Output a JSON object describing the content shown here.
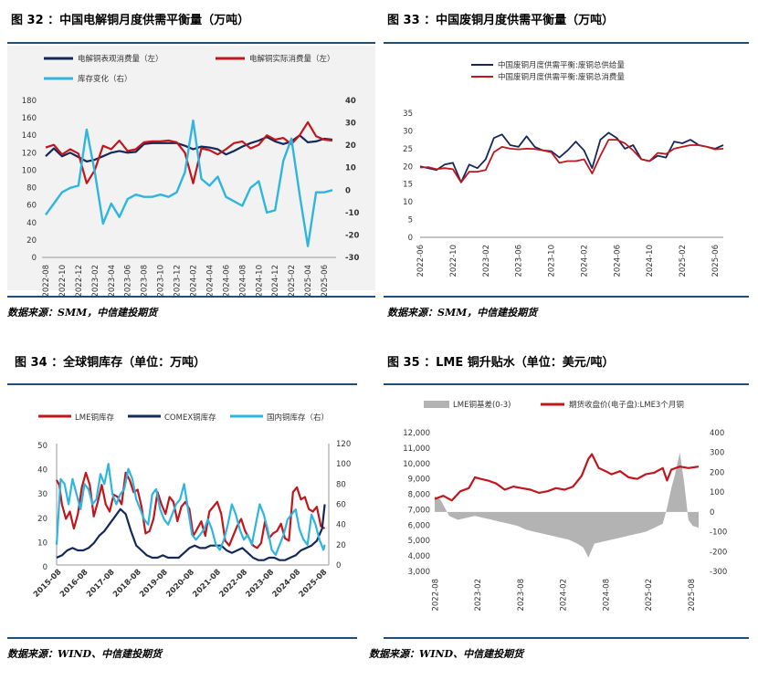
{
  "figures": [
    {
      "title": "图 32 ：中国电解铜月度供需平衡量（万吨）",
      "source": "数据来源：SMM，中信建投期货"
    },
    {
      "title": "图 33 ：中国废铜月度供需平衡量（万吨）",
      "source": "数据来源：SMM，中信建投期货"
    },
    {
      "title": "图 34 ：全球铜库存（单位：万吨）",
      "source": "数据来源：WIND、中信建投期货"
    },
    {
      "title": "图 35 ：LME 铜升贴水（单位：美元/吨）",
      "source": "数据来源：WIND、中信建投期货"
    }
  ],
  "colors": {
    "navy": "#14285a",
    "red": "#c0161c",
    "cyan": "#2eb5e0",
    "gray": "#b3b3b3",
    "rule": "#1f4e79"
  },
  "chart_data": [
    {
      "type": "line",
      "title": "中国电解铜月度供需平衡量（万吨）",
      "x": [
        "2022-08",
        "2022-09",
        "2022-10",
        "2022-11",
        "2022-12",
        "2023-01",
        "2023-02",
        "2023-03",
        "2023-04",
        "2023-05",
        "2023-06",
        "2023-07",
        "2023-08",
        "2023-09",
        "2023-10",
        "2023-11",
        "2023-12",
        "2024-01",
        "2024-02",
        "2024-03",
        "2024-04",
        "2024-05",
        "2024-06",
        "2024-07",
        "2024-08",
        "2024-09",
        "2024-10",
        "2024-11",
        "2024-12",
        "2025-01",
        "2025-02",
        "2025-03",
        "2025-04",
        "2025-05",
        "2025-06",
        "2025-07"
      ],
      "x_tick_labels": [
        "2022-08",
        "2022-10",
        "2022-12",
        "2023-02",
        "2023-04",
        "2023-06",
        "2023-08",
        "2023-10",
        "2023-12",
        "2024-02",
        "2024-04",
        "2024-06",
        "2024-08",
        "2024-10",
        "2024-12",
        "2025-02",
        "2025-04",
        "2025-06"
      ],
      "ylim_left": [
        0,
        180
      ],
      "yticks_left": [
        "0",
        "20",
        "40",
        "60",
        "80",
        "100",
        "120",
        "140",
        "160",
        "180"
      ],
      "ylim_right": [
        -30,
        40
      ],
      "yticks_right": [
        "-30",
        "-20",
        "-10",
        "0",
        "10",
        "20",
        "30",
        "40"
      ],
      "legend_position": "top",
      "series": [
        {
          "name": "电解铜表观消费量（左）",
          "axis": "left",
          "color": "#14285a",
          "values": [
            116,
            125,
            116,
            120,
            115,
            110,
            112,
            116,
            120,
            122,
            120,
            121,
            130,
            131,
            131,
            131,
            131,
            128,
            124,
            127,
            126,
            124,
            118,
            122,
            127,
            131,
            134,
            138,
            133,
            130,
            133,
            140,
            132,
            133,
            136,
            135
          ]
        },
        {
          "name": "电解铜实际消费量（左）",
          "axis": "left",
          "color": "#c0161c",
          "values": [
            126,
            129,
            118,
            124,
            119,
            85,
            100,
            128,
            124,
            134,
            122,
            124,
            132,
            133,
            133,
            134,
            132,
            120,
            85,
            125,
            123,
            118,
            124,
            131,
            133,
            125,
            129,
            140,
            135,
            137,
            130,
            140,
            155,
            139,
            135,
            134
          ]
        },
        {
          "name": "库存变化（右）",
          "axis": "right",
          "color": "#2eb5e0",
          "values": [
            -11,
            -6,
            -1,
            1,
            2,
            27,
            8,
            -15,
            -6,
            -12,
            -4,
            -2,
            -3,
            -3,
            -2,
            -3,
            -1,
            8,
            31,
            5,
            2,
            6,
            -3,
            -5,
            -7,
            1,
            4,
            -10,
            -9,
            13,
            23,
            -2,
            -25,
            -1,
            -1,
            0
          ]
        }
      ]
    },
    {
      "type": "line",
      "title": "中国废铜月度供需平衡量（万吨）",
      "x": [
        "2022-06",
        "2022-07",
        "2022-08",
        "2022-09",
        "2022-10",
        "2022-11",
        "2022-12",
        "2023-01",
        "2023-02",
        "2023-03",
        "2023-04",
        "2023-05",
        "2023-06",
        "2023-07",
        "2023-08",
        "2023-09",
        "2023-10",
        "2023-11",
        "2023-12",
        "2024-01",
        "2024-02",
        "2024-03",
        "2024-04",
        "2024-05",
        "2024-06",
        "2024-07",
        "2024-08",
        "2024-09",
        "2024-10",
        "2024-11",
        "2024-12",
        "2025-01",
        "2025-02",
        "2025-03",
        "2025-04",
        "2025-05",
        "2025-06",
        "2025-07"
      ],
      "x_tick_labels": [
        "2022-06",
        "2022-10",
        "2023-02",
        "2023-06",
        "2023-10",
        "2024-02",
        "2024-06",
        "2024-10",
        "2025-02",
        "2025-06"
      ],
      "ylim": [
        0,
        35
      ],
      "yticks": [
        "0",
        "5",
        "10",
        "15",
        "20",
        "25",
        "30",
        "35"
      ],
      "legend_position": "top",
      "series": [
        {
          "name": "中国废铜月度供需平衡:废铜总供给量",
          "color": "#14285a",
          "values": [
            20,
            19.5,
            19,
            20.5,
            21,
            15.5,
            20.5,
            19.5,
            22,
            28,
            29,
            26,
            25.5,
            28.5,
            25.5,
            24.5,
            24.3,
            22.5,
            24.5,
            27,
            24.5,
            19.5,
            27.5,
            29.5,
            28,
            25,
            26,
            22,
            21.5,
            23,
            22.5,
            27,
            26.5,
            27.5,
            26,
            25.5,
            25,
            26
          ]
        },
        {
          "name": "中国废铜月度供需平衡:废铜总消费量",
          "color": "#c0161c",
          "values": [
            19.7,
            19.8,
            19.2,
            19.5,
            19.2,
            15.5,
            18.5,
            18.5,
            19,
            24,
            25.5,
            25,
            24.8,
            25,
            24.9,
            24.5,
            24,
            21,
            21.5,
            21.5,
            22,
            18,
            23,
            27.5,
            27.5,
            26.5,
            24.5,
            22,
            21.5,
            23.8,
            23.5,
            25,
            25.5,
            26,
            26,
            25.5,
            24.8,
            25
          ]
        }
      ]
    },
    {
      "type": "line",
      "title": "全球铜库存（单位：万吨）",
      "x_tick_labels": [
        "2015-08",
        "2016-08",
        "2017-08",
        "2018-08",
        "2019-08",
        "2020-08",
        "2021-08",
        "2022-08",
        "2023-08",
        "2024-08",
        "2025-08"
      ],
      "x_range": [
        2015.5,
        2025.75
      ],
      "ylim_left": [
        0,
        50
      ],
      "yticks_left": [
        "0",
        "10",
        "20",
        "30",
        "40",
        "50"
      ],
      "ylim_right": [
        0,
        120
      ],
      "yticks_right": [
        "0",
        "20",
        "40",
        "60",
        "80",
        "100",
        "120"
      ],
      "legend_position": "top",
      "series": [
        {
          "name": "LME铜库存",
          "axis": "left",
          "color": "#c0161c",
          "x": [
            2015.5,
            2015.6,
            2015.7,
            2015.85,
            2016.0,
            2016.15,
            2016.3,
            2016.45,
            2016.6,
            2016.75,
            2016.9,
            2017.05,
            2017.2,
            2017.35,
            2017.5,
            2017.65,
            2017.8,
            2017.95,
            2018.1,
            2018.25,
            2018.4,
            2018.55,
            2018.7,
            2018.85,
            2019.0,
            2019.15,
            2019.3,
            2019.45,
            2019.6,
            2019.75,
            2019.9,
            2020.05,
            2020.2,
            2020.35,
            2020.5,
            2020.65,
            2020.8,
            2020.95,
            2021.1,
            2021.25,
            2021.4,
            2021.55,
            2021.7,
            2021.85,
            2022.0,
            2022.15,
            2022.3,
            2022.45,
            2022.6,
            2022.75,
            2022.9,
            2023.05,
            2023.2,
            2023.35,
            2023.5,
            2023.65,
            2023.8,
            2023.95,
            2024.1,
            2024.25,
            2024.4,
            2024.55,
            2024.7,
            2024.85,
            2025.0,
            2025.15,
            2025.3,
            2025.45,
            2025.6
          ],
          "values": [
            35,
            33,
            25,
            19,
            22,
            15,
            21,
            32,
            38,
            33,
            20,
            26,
            33,
            25,
            22,
            29,
            28,
            25,
            38,
            35,
            30,
            31,
            24,
            13,
            14,
            19,
            30,
            25,
            21,
            28,
            26,
            18,
            24,
            26,
            23,
            12,
            15,
            18,
            12,
            22,
            24,
            26,
            21,
            10,
            8,
            12,
            16,
            19,
            14,
            11,
            8,
            7,
            9,
            18,
            11,
            13,
            14,
            17,
            11,
            10,
            30,
            32,
            27,
            28,
            23,
            22,
            24,
            16,
            15
          ]
        },
        {
          "name": "COMEX铜库存",
          "axis": "left",
          "color": "#14285a",
          "x": [
            2015.5,
            2015.7,
            2015.9,
            2016.1,
            2016.3,
            2016.5,
            2016.7,
            2016.9,
            2017.1,
            2017.3,
            2017.5,
            2017.7,
            2017.9,
            2018.1,
            2018.3,
            2018.5,
            2018.7,
            2018.9,
            2019.1,
            2019.3,
            2019.5,
            2019.7,
            2019.9,
            2020.1,
            2020.3,
            2020.5,
            2020.7,
            2020.9,
            2021.1,
            2021.3,
            2021.5,
            2021.7,
            2021.9,
            2022.1,
            2022.3,
            2022.5,
            2022.7,
            2022.9,
            2023.1,
            2023.3,
            2023.5,
            2023.7,
            2023.9,
            2024.1,
            2024.3,
            2024.5,
            2024.7,
            2024.9,
            2025.1,
            2025.3,
            2025.5,
            2025.6
          ],
          "values": [
            3,
            4,
            6,
            7,
            6,
            6,
            7,
            9,
            12,
            14,
            17,
            20,
            23,
            21,
            14,
            8,
            6,
            4,
            3,
            3,
            4,
            3,
            3,
            3,
            5,
            7,
            8,
            7,
            7,
            8,
            8,
            8,
            6,
            5,
            6,
            7,
            5,
            3,
            2,
            2,
            3,
            3,
            2,
            2,
            3,
            4,
            6,
            7,
            8,
            10,
            15,
            25
          ]
        },
        {
          "name": "国内铜库存（右）",
          "axis": "right",
          "color": "#2eb5e0",
          "x": [
            2015.5,
            2015.65,
            2015.8,
            2015.95,
            2016.1,
            2016.25,
            2016.4,
            2016.55,
            2016.7,
            2016.85,
            2017.0,
            2017.15,
            2017.3,
            2017.45,
            2017.6,
            2017.75,
            2017.9,
            2018.05,
            2018.2,
            2018.35,
            2018.5,
            2018.65,
            2018.8,
            2018.95,
            2019.1,
            2019.25,
            2019.4,
            2019.55,
            2019.7,
            2019.85,
            2020.0,
            2020.15,
            2020.3,
            2020.45,
            2020.6,
            2020.75,
            2020.9,
            2021.05,
            2021.2,
            2021.35,
            2021.5,
            2021.65,
            2021.8,
            2021.95,
            2022.1,
            2022.25,
            2022.4,
            2022.55,
            2022.7,
            2022.85,
            2023.0,
            2023.15,
            2023.3,
            2023.45,
            2023.6,
            2023.75,
            2023.9,
            2024.05,
            2024.2,
            2024.35,
            2024.5,
            2024.65,
            2024.8,
            2024.95,
            2025.1,
            2025.25,
            2025.4,
            2025.55,
            2025.6
          ],
          "values": [
            20,
            85,
            80,
            60,
            85,
            70,
            55,
            80,
            75,
            60,
            65,
            90,
            80,
            100,
            70,
            60,
            70,
            75,
            95,
            85,
            65,
            55,
            45,
            40,
            70,
            75,
            55,
            45,
            40,
            50,
            60,
            65,
            80,
            55,
            30,
            25,
            30,
            35,
            45,
            35,
            20,
            15,
            25,
            40,
            60,
            50,
            35,
            25,
            30,
            20,
            40,
            60,
            50,
            35,
            15,
            10,
            20,
            30,
            45,
            50,
            55,
            35,
            25,
            20,
            50,
            40,
            25,
            15,
            20
          ]
        }
      ]
    },
    {
      "type": "area",
      "title": "LME 铜升贴水（单位：美元/吨）",
      "x_tick_labels": [
        "2022-08",
        "2023-02",
        "2023-08",
        "2024-02",
        "2024-08",
        "2025-02",
        "2025-08"
      ],
      "x_range": [
        2022.58,
        2025.67
      ],
      "ylim_left": [
        3000,
        12000
      ],
      "yticks_left": [
        "3,000",
        "4,000",
        "5,000",
        "6,000",
        "7,000",
        "8,000",
        "9,000",
        "10,000",
        "11,000",
        "12,000"
      ],
      "ylim_right": [
        -300,
        400
      ],
      "yticks_right": [
        "-300",
        "-200",
        "-100",
        "0",
        "100",
        "200",
        "300",
        "400"
      ],
      "legend_position": "top",
      "series": [
        {
          "name": "LME铜基差(0-3)",
          "axis": "right",
          "type": "area",
          "color": "#b3b3b3",
          "x": [
            2022.58,
            2022.65,
            2022.75,
            2022.85,
            2022.95,
            2023.05,
            2023.15,
            2023.25,
            2023.35,
            2023.45,
            2023.55,
            2023.65,
            2023.75,
            2023.85,
            2023.95,
            2024.05,
            2024.15,
            2024.25,
            2024.32,
            2024.38,
            2024.45,
            2024.55,
            2024.65,
            2024.75,
            2024.85,
            2024.95,
            2025.05,
            2025.15,
            2025.25,
            2025.3,
            2025.35,
            2025.4,
            2025.45,
            2025.5,
            2025.55,
            2025.6,
            2025.67
          ],
          "values": [
            80,
            60,
            -20,
            -40,
            -30,
            -20,
            -30,
            -40,
            -50,
            -60,
            -70,
            -90,
            -100,
            -110,
            -120,
            -130,
            -140,
            -160,
            -180,
            -230,
            -160,
            -150,
            -140,
            -130,
            -120,
            -110,
            -100,
            -80,
            -60,
            20,
            120,
            200,
            300,
            150,
            -40,
            -70,
            -80
          ]
        },
        {
          "name": "期货收盘价(电子盘):LME3个月铜",
          "axis": "left",
          "type": "line",
          "color": "#c0161c",
          "x": [
            2022.58,
            2022.68,
            2022.78,
            2022.88,
            2022.98,
            2023.05,
            2023.12,
            2023.2,
            2023.3,
            2023.4,
            2023.5,
            2023.6,
            2023.7,
            2023.8,
            2023.9,
            2024.0,
            2024.1,
            2024.2,
            2024.3,
            2024.38,
            2024.42,
            2024.5,
            2024.58,
            2024.65,
            2024.75,
            2024.85,
            2024.95,
            2025.05,
            2025.15,
            2025.25,
            2025.3,
            2025.35,
            2025.45,
            2025.55,
            2025.67
          ],
          "values": [
            7700,
            7900,
            7600,
            8200,
            8400,
            9100,
            9000,
            8900,
            8700,
            8300,
            8500,
            8400,
            8300,
            8100,
            8200,
            8400,
            8300,
            8500,
            9200,
            10300,
            10600,
            9700,
            9500,
            9300,
            9500,
            9100,
            9000,
            9300,
            9400,
            9700,
            8900,
            9600,
            9800,
            9700,
            9800
          ]
        }
      ]
    }
  ]
}
